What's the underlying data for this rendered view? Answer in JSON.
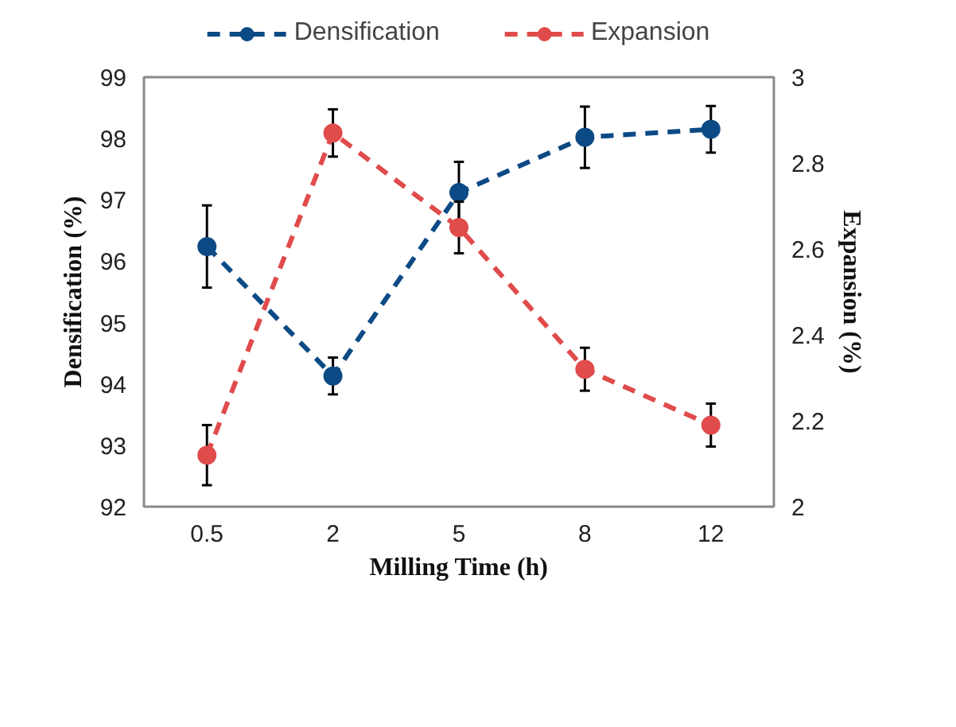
{
  "chart_data": {
    "type": "line",
    "xlabel": "Milling Time (h)",
    "ylabel": "Densification (%)",
    "y2label": "Expansion (%)",
    "categories": [
      "0.5",
      "2",
      "5",
      "8",
      "12"
    ],
    "series": [
      {
        "name": "Densification",
        "color": "#0c4a85",
        "values": [
          96.24,
          94.13,
          97.12,
          98.02,
          98.15
        ],
        "errors": [
          0.67,
          0.3,
          0.5,
          0.5,
          0.38
        ]
      },
      {
        "name": "Expansion",
        "color": "#e04b4b",
        "axis": "y2",
        "values": [
          2.12,
          2.87,
          2.65,
          2.32,
          2.19
        ],
        "errors": [
          0.07,
          0.055,
          0.06,
          0.05,
          0.05
        ]
      }
    ],
    "ylim": [
      92,
      99
    ],
    "yticks": [
      92,
      93,
      94,
      95,
      96,
      97,
      98,
      99
    ],
    "y2lim": [
      2,
      3
    ],
    "y2ticks": [
      {
        "value": 2,
        "label": "2"
      },
      {
        "value": 2.2,
        "label": "2.2"
      },
      {
        "value": 2.4,
        "label": "2.4"
      },
      {
        "value": 2.6,
        "label": "2.6"
      },
      {
        "value": 2.8,
        "label": "2.8"
      },
      {
        "value": 3,
        "label": "3"
      }
    ],
    "grid": false,
    "legend": "top",
    "marker": "circle",
    "line_style": "dashed"
  }
}
